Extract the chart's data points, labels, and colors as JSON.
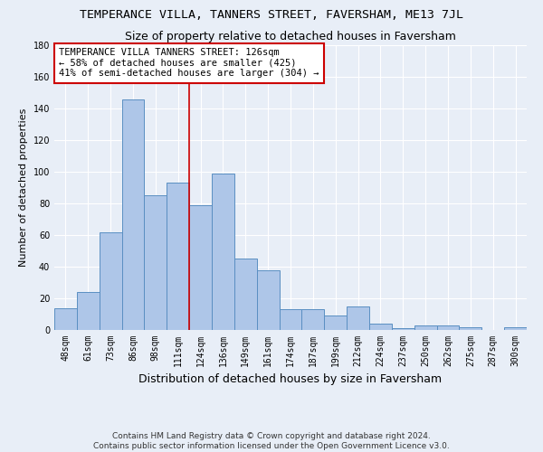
{
  "title": "TEMPERANCE VILLA, TANNERS STREET, FAVERSHAM, ME13 7JL",
  "subtitle": "Size of property relative to detached houses in Faversham",
  "xlabel": "Distribution of detached houses by size in Faversham",
  "ylabel": "Number of detached properties",
  "categories": [
    "48sqm",
    "61sqm",
    "73sqm",
    "86sqm",
    "98sqm",
    "111sqm",
    "124sqm",
    "136sqm",
    "149sqm",
    "161sqm",
    "174sqm",
    "187sqm",
    "199sqm",
    "212sqm",
    "224sqm",
    "237sqm",
    "250sqm",
    "262sqm",
    "275sqm",
    "287sqm",
    "300sqm"
  ],
  "values": [
    14,
    24,
    62,
    146,
    85,
    93,
    79,
    99,
    45,
    38,
    13,
    13,
    9,
    15,
    4,
    1,
    3,
    3,
    2,
    0,
    2
  ],
  "bar_color": "#aec6e8",
  "bar_edge_color": "#5a8fc2",
  "background_color": "#e8eef7",
  "grid_color": "#ffffff",
  "vline_x": 6.0,
  "vline_color": "#cc0000",
  "annotation_box_text": "TEMPERANCE VILLA TANNERS STREET: 126sqm\n← 58% of detached houses are smaller (425)\n41% of semi-detached houses are larger (304) →",
  "annotation_box_edge_color": "#cc0000",
  "annotation_box_bg": "#ffffff",
  "ylim": [
    0,
    180
  ],
  "yticks": [
    0,
    20,
    40,
    60,
    80,
    100,
    120,
    140,
    160,
    180
  ],
  "footnote1": "Contains HM Land Registry data © Crown copyright and database right 2024.",
  "footnote2": "Contains public sector information licensed under the Open Government Licence v3.0.",
  "title_fontsize": 9.5,
  "subtitle_fontsize": 9,
  "xlabel_fontsize": 9,
  "ylabel_fontsize": 8,
  "tick_fontsize": 7,
  "annotation_fontsize": 7.5,
  "footnote_fontsize": 6.5
}
